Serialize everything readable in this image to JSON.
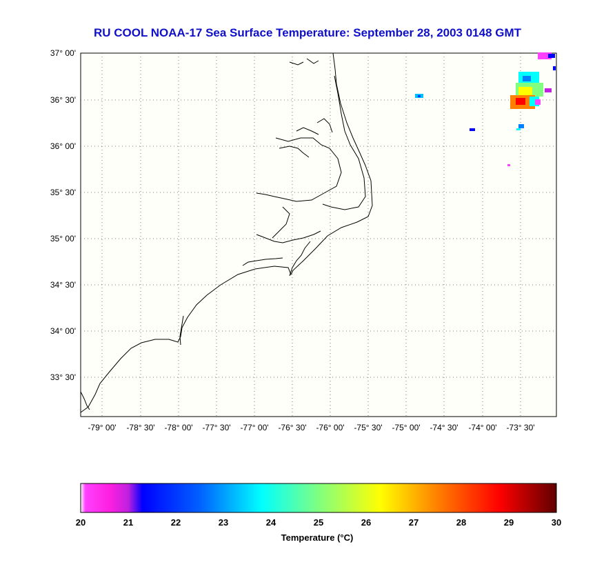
{
  "title": "RU COOL  NOAA-17  Sea Surface Temperature:  September 28, 2003 0148 GMT",
  "map": {
    "lat_labels": [
      "37° 00'",
      "36° 30'",
      "36° 00'",
      "35° 30'",
      "35° 00'",
      "34° 30'",
      "34° 00'",
      "33° 30'"
    ],
    "lon_labels": [
      "-79° 00'",
      "-78° 30'",
      "-78° 00'",
      "-77° 30'",
      "-77° 00'",
      "-76° 30'",
      "-76° 00'",
      "-75° 30'",
      "-75° 00'",
      "-74° 30'",
      "-74° 00'",
      "-73° 30'"
    ],
    "background_color": "#fffffa",
    "grid": "dotted"
  },
  "colorbar": {
    "ticks": [
      "20",
      "21",
      "22",
      "23",
      "24",
      "25",
      "26",
      "27",
      "28",
      "29",
      "30"
    ],
    "label": "Temperature (°C)",
    "colors": [
      "#ff40ff",
      "#c020e0",
      "#0000ff",
      "#0080ff",
      "#00ffff",
      "#80ff80",
      "#ffff00",
      "#ff8000",
      "#ff0000",
      "#800000"
    ]
  }
}
